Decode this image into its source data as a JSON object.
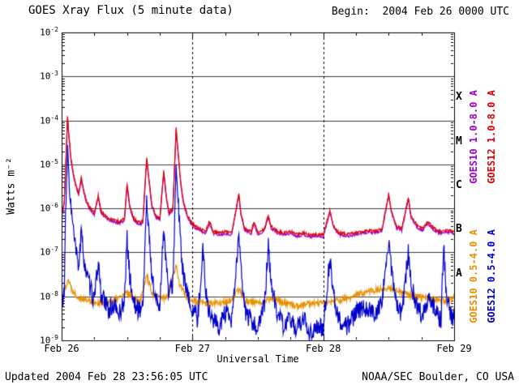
{
  "chart_data": {
    "type": "line",
    "title": "GOES Xray Flux (5 minute data)",
    "begin_line": "Begin:  2004 Feb 26 0000 UTC",
    "xlabel": "Universal Time",
    "ylabel": "Watts m⁻²",
    "x_unit": "days since 2004 Feb 26 0000 UTC",
    "x_range_days": [
      0,
      3
    ],
    "ylog_range": [
      -9,
      -2
    ],
    "ytick_exponents": [
      -2,
      -3,
      -4,
      -5,
      -6,
      -7,
      -8,
      -9
    ],
    "xticks": [
      {
        "t": 0,
        "label": "Feb 26"
      },
      {
        "t": 1,
        "label": "Feb 27"
      },
      {
        "t": 2,
        "label": "Feb 28"
      },
      {
        "t": 3,
        "label": "Feb 29"
      }
    ],
    "day_gridlines": [
      1,
      2
    ],
    "flare_classes": [
      {
        "label": "X",
        "log_center": -3.5
      },
      {
        "label": "M",
        "log_center": -4.5
      },
      {
        "label": "C",
        "log_center": -5.5
      },
      {
        "label": "B",
        "log_center": -6.5
      },
      {
        "label": "A",
        "log_center": -7.5
      }
    ],
    "legend": [
      {
        "label": "GOES10 1.0-8.0 A",
        "color": "#a000c8"
      },
      {
        "label": "GOES12 1.0-8.0 A",
        "color": "#dd0000"
      },
      {
        "label": "GOES10 0.5-4.0 A",
        "color": "#e89000"
      },
      {
        "label": "GOES12 0.5-4.0 A",
        "color": "#0000cc"
      }
    ],
    "series": [
      {
        "name": "GOES10 1.0-8.0 A",
        "color": "#a000c8",
        "noise": 0.03,
        "seed": 11,
        "ref": "GOES12 1.0-8.0 A",
        "scale": 0.9
      },
      {
        "name": "GOES10 0.5-4.0 A",
        "color": "#e89000",
        "noise": 0.07,
        "seed": 22,
        "points": [
          [
            0.0,
            9e-09
          ],
          [
            0.05,
            2.5e-08
          ],
          [
            0.08,
            1.4e-08
          ],
          [
            0.12,
            1e-08
          ],
          [
            0.2,
            8e-09
          ],
          [
            0.3,
            7e-09
          ],
          [
            0.4,
            8e-09
          ],
          [
            0.5,
            1.2e-08
          ],
          [
            0.6,
            8e-09
          ],
          [
            0.65,
            3e-08
          ],
          [
            0.7,
            1e-08
          ],
          [
            0.8,
            9e-09
          ],
          [
            0.875,
            5e-08
          ],
          [
            0.9,
            2e-08
          ],
          [
            0.95,
            1e-08
          ],
          [
            1.0,
            8e-09
          ],
          [
            1.1,
            7e-09
          ],
          [
            1.2,
            7e-09
          ],
          [
            1.3,
            8e-09
          ],
          [
            1.36,
            1.5e-08
          ],
          [
            1.4,
            8e-09
          ],
          [
            1.5,
            7e-09
          ],
          [
            1.6,
            9e-09
          ],
          [
            1.7,
            7e-09
          ],
          [
            1.8,
            6e-09
          ],
          [
            1.9,
            7e-09
          ],
          [
            2.0,
            7e-09
          ],
          [
            2.1,
            8e-09
          ],
          [
            2.2,
            9e-09
          ],
          [
            2.3,
            1.2e-08
          ],
          [
            2.4,
            1.4e-08
          ],
          [
            2.5,
            1.6e-08
          ],
          [
            2.6,
            1.2e-08
          ],
          [
            2.7,
            1e-08
          ],
          [
            2.8,
            9e-09
          ],
          [
            2.9,
            8e-09
          ],
          [
            3.0,
            9e-09
          ]
        ]
      },
      {
        "name": "GOES12 0.5-4.0 A",
        "color": "#0000cc",
        "noise": 0.22,
        "seed": 33,
        "points": [
          [
            0.0,
            8e-09
          ],
          [
            0.02,
            1.2e-08
          ],
          [
            0.03,
            6e-07
          ],
          [
            0.045,
            2e-05
          ],
          [
            0.055,
            6e-06
          ],
          [
            0.07,
            1.2e-06
          ],
          [
            0.09,
            3e-07
          ],
          [
            0.11,
            1e-07
          ],
          [
            0.13,
            5e-08
          ],
          [
            0.15,
            2.5e-07
          ],
          [
            0.17,
            8e-08
          ],
          [
            0.19,
            3e-08
          ],
          [
            0.22,
            1.5e-08
          ],
          [
            0.25,
            8e-09
          ],
          [
            0.28,
            6e-08
          ],
          [
            0.3,
            1.2e-08
          ],
          [
            0.33,
            7e-09
          ],
          [
            0.36,
            5e-09
          ],
          [
            0.4,
            6e-09
          ],
          [
            0.44,
            4e-09
          ],
          [
            0.48,
            8e-09
          ],
          [
            0.5,
            2e-07
          ],
          [
            0.52,
            3e-08
          ],
          [
            0.55,
            7e-09
          ],
          [
            0.58,
            5e-09
          ],
          [
            0.62,
            6e-09
          ],
          [
            0.65,
            1.5e-06
          ],
          [
            0.67,
            2e-07
          ],
          [
            0.69,
            3e-08
          ],
          [
            0.72,
            8e-09
          ],
          [
            0.75,
            6e-09
          ],
          [
            0.78,
            4e-07
          ],
          [
            0.8,
            5e-08
          ],
          [
            0.82,
            1e-08
          ],
          [
            0.85,
            2e-08
          ],
          [
            0.875,
            8e-06
          ],
          [
            0.89,
            1.5e-06
          ],
          [
            0.91,
            1.5e-07
          ],
          [
            0.93,
            3e-08
          ],
          [
            0.96,
            1e-08
          ],
          [
            1.0,
            5e-09
          ],
          [
            1.04,
            3e-09
          ],
          [
            1.08,
            1.2e-07
          ],
          [
            1.1,
            1.5e-08
          ],
          [
            1.13,
            4e-09
          ],
          [
            1.16,
            3e-09
          ],
          [
            1.2,
            2e-09
          ],
          [
            1.25,
            4e-09
          ],
          [
            1.3,
            2.5e-09
          ],
          [
            1.355,
            2.5e-07
          ],
          [
            1.37,
            4e-08
          ],
          [
            1.4,
            5e-09
          ],
          [
            1.45,
            2.5e-09
          ],
          [
            1.5,
            2e-09
          ],
          [
            1.55,
            6e-09
          ],
          [
            1.58,
            1.5e-07
          ],
          [
            1.6,
            2e-08
          ],
          [
            1.65,
            4e-09
          ],
          [
            1.7,
            2e-09
          ],
          [
            1.75,
            3e-09
          ],
          [
            1.8,
            1.8e-09
          ],
          [
            1.85,
            3e-09
          ],
          [
            1.9,
            1.5e-09
          ],
          [
            1.95,
            2e-09
          ],
          [
            2.0,
            1.8e-09
          ],
          [
            2.05,
            8e-08
          ],
          [
            2.08,
            1e-08
          ],
          [
            2.12,
            3e-09
          ],
          [
            2.18,
            2e-09
          ],
          [
            2.25,
            4e-09
          ],
          [
            2.3,
            6e-09
          ],
          [
            2.35,
            5e-09
          ],
          [
            2.4,
            4e-09
          ],
          [
            2.45,
            8e-09
          ],
          [
            2.5,
            2e-07
          ],
          [
            2.52,
            4e-08
          ],
          [
            2.56,
            6e-09
          ],
          [
            2.6,
            4e-09
          ],
          [
            2.65,
            1e-07
          ],
          [
            2.67,
            2e-08
          ],
          [
            2.72,
            5e-09
          ],
          [
            2.76,
            4e-09
          ],
          [
            2.8,
            1e-08
          ],
          [
            2.85,
            5e-09
          ],
          [
            2.9,
            3e-09
          ],
          [
            2.92,
            1.5e-07
          ],
          [
            2.94,
            1e-08
          ],
          [
            2.97,
            4e-09
          ],
          [
            3.0,
            3e-09
          ]
        ]
      },
      {
        "name": "GOES12 1.0-8.0 A",
        "color": "#dd0000",
        "noise": 0.03,
        "seed": 44,
        "points": [
          [
            0.0,
            1.2e-06
          ],
          [
            0.01,
            9e-07
          ],
          [
            0.02,
            1.5e-06
          ],
          [
            0.03,
            8e-06
          ],
          [
            0.045,
            0.00012
          ],
          [
            0.055,
            5e-05
          ],
          [
            0.07,
            1.5e-05
          ],
          [
            0.09,
            6e-06
          ],
          [
            0.11,
            3.5e-06
          ],
          [
            0.13,
            2.2e-06
          ],
          [
            0.15,
            5e-06
          ],
          [
            0.17,
            2.5e-06
          ],
          [
            0.19,
            1.5e-06
          ],
          [
            0.22,
            1e-06
          ],
          [
            0.25,
            8e-07
          ],
          [
            0.28,
            2e-06
          ],
          [
            0.3,
            9e-07
          ],
          [
            0.33,
            7e-07
          ],
          [
            0.36,
            6e-07
          ],
          [
            0.4,
            5.5e-07
          ],
          [
            0.44,
            5e-07
          ],
          [
            0.48,
            6e-07
          ],
          [
            0.5,
            3.5e-06
          ],
          [
            0.52,
            1.2e-06
          ],
          [
            0.55,
            6e-07
          ],
          [
            0.58,
            5e-07
          ],
          [
            0.62,
            5e-07
          ],
          [
            0.65,
            1.4e-05
          ],
          [
            0.67,
            4e-06
          ],
          [
            0.69,
            1.2e-06
          ],
          [
            0.72,
            7e-07
          ],
          [
            0.75,
            6e-07
          ],
          [
            0.78,
            7e-06
          ],
          [
            0.8,
            2e-06
          ],
          [
            0.82,
            8e-07
          ],
          [
            0.85,
            1e-06
          ],
          [
            0.875,
            6.5e-05
          ],
          [
            0.89,
            2e-05
          ],
          [
            0.91,
            4e-06
          ],
          [
            0.93,
            1.5e-06
          ],
          [
            0.96,
            7e-07
          ],
          [
            1.0,
            4.5e-07
          ],
          [
            1.05,
            3.5e-07
          ],
          [
            1.1,
            3e-07
          ],
          [
            1.13,
            5e-07
          ],
          [
            1.16,
            3e-07
          ],
          [
            1.2,
            2.8e-07
          ],
          [
            1.25,
            3e-07
          ],
          [
            1.3,
            2.8e-07
          ],
          [
            1.355,
            2.2e-06
          ],
          [
            1.37,
            8e-07
          ],
          [
            1.4,
            3.5e-07
          ],
          [
            1.45,
            3e-07
          ],
          [
            1.47,
            5e-07
          ],
          [
            1.5,
            2.8e-07
          ],
          [
            1.55,
            3.5e-07
          ],
          [
            1.58,
            7e-07
          ],
          [
            1.6,
            4e-07
          ],
          [
            1.65,
            3e-07
          ],
          [
            1.7,
            2.8e-07
          ],
          [
            1.75,
            3e-07
          ],
          [
            1.8,
            2.6e-07
          ],
          [
            1.85,
            2.8e-07
          ],
          [
            1.9,
            2.5e-07
          ],
          [
            1.95,
            2.6e-07
          ],
          [
            2.0,
            2.5e-07
          ],
          [
            2.05,
            9e-07
          ],
          [
            2.08,
            4e-07
          ],
          [
            2.12,
            2.8e-07
          ],
          [
            2.18,
            2.6e-07
          ],
          [
            2.25,
            2.8e-07
          ],
          [
            2.3,
            3e-07
          ],
          [
            2.35,
            3.2e-07
          ],
          [
            2.4,
            3e-07
          ],
          [
            2.45,
            3.5e-07
          ],
          [
            2.5,
            2.2e-06
          ],
          [
            2.52,
            9e-07
          ],
          [
            2.56,
            4e-07
          ],
          [
            2.6,
            3.5e-07
          ],
          [
            2.65,
            1.8e-06
          ],
          [
            2.67,
            7e-07
          ],
          [
            2.72,
            4e-07
          ],
          [
            2.76,
            3.5e-07
          ],
          [
            2.8,
            5e-07
          ],
          [
            2.85,
            3.5e-07
          ],
          [
            2.9,
            3e-07
          ],
          [
            2.95,
            3.2e-07
          ],
          [
            3.0,
            3e-07
          ]
        ]
      }
    ]
  },
  "footer": {
    "updated": "Updated 2004 Feb 28 23:56:05 UTC",
    "credit": "NOAA/SEC Boulder, CO USA"
  }
}
